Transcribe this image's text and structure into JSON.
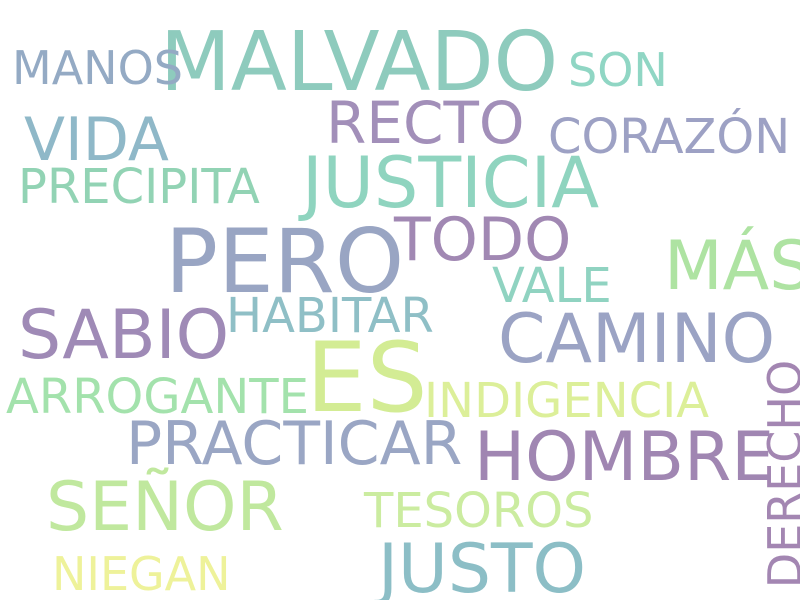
{
  "words": [
    {
      "text": "MALVADO",
      "color": "#8ecbbd"
    },
    {
      "text": "MANOS",
      "color": "#94aac4"
    },
    {
      "text": "SON",
      "color": "#90d6c4"
    },
    {
      "text": "RECTO",
      "color": "#a28fb9"
    },
    {
      "text": "VIDA",
      "color": "#8fb8c8"
    },
    {
      "text": "CORAZÓN",
      "color": "#9da1c4"
    },
    {
      "text": "JUSTICIA",
      "color": "#8fd4bf"
    },
    {
      "text": "PRECIPITA",
      "color": "#92d3b4"
    },
    {
      "text": "TODO",
      "color": "#a188b3"
    },
    {
      "text": "PERO",
      "color": "#99a5c3"
    },
    {
      "text": "MÁS",
      "color": "#aee3a2"
    },
    {
      "text": "VALE",
      "color": "#90d3c1"
    },
    {
      "text": "HABITAR",
      "color": "#8fbfc6"
    },
    {
      "text": "SABIO",
      "color": "#9f8ab6"
    },
    {
      "text": "CAMINO",
      "color": "#9ba3c4"
    },
    {
      "text": "ES",
      "color": "#d3ec94"
    },
    {
      "text": "ARROGANTE",
      "color": "#a3e2ac"
    },
    {
      "text": "INDIGENCIA",
      "color": "#dcef99"
    },
    {
      "text": "DERECHO",
      "color": "#a386b2"
    },
    {
      "text": "PRACTICAR",
      "color": "#9aa6c4"
    },
    {
      "text": "HOMBRE",
      "color": "#a086b2"
    },
    {
      "text": "SEÑOR",
      "color": "#c0e89e"
    },
    {
      "text": "TESOROS",
      "color": "#cbeca0"
    },
    {
      "text": "JUSTO",
      "color": "#8cbec6"
    },
    {
      "text": "NIEGAN",
      "color": "#eef29a"
    }
  ]
}
